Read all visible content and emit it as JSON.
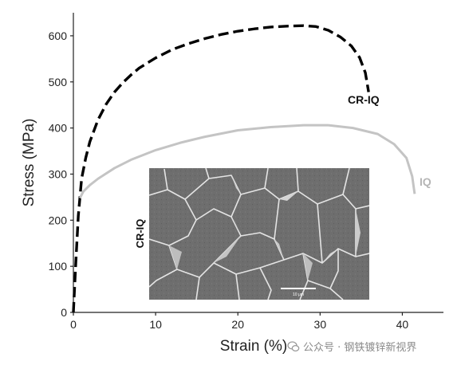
{
  "chart_data": {
    "type": "line",
    "xlabel": "Strain (%)",
    "ylabel": "Stress (MPa)",
    "xlim": [
      0,
      45
    ],
    "ylim": [
      0,
      650
    ],
    "xticks": [
      0,
      10,
      20,
      30,
      40
    ],
    "yticks": [
      0,
      100,
      200,
      300,
      400,
      500,
      600
    ],
    "grid": false,
    "series": [
      {
        "name": "CR-IQ",
        "style": "dashed",
        "color": "#000000",
        "x": [
          0,
          0.3,
          0.6,
          1.0,
          1.5,
          2.0,
          3.0,
          4.0,
          5.0,
          6.0,
          7.0,
          8.0,
          10.0,
          12.0,
          14.0,
          16.0,
          18.0,
          20.0,
          22.0,
          24.0,
          26.0,
          28.0,
          29.5,
          31.0,
          32.5,
          33.8,
          34.8,
          35.5,
          35.9
        ],
        "y": [
          0,
          110,
          210,
          290,
          335,
          370,
          418,
          452,
          478,
          498,
          515,
          530,
          552,
          570,
          583,
          594,
          603,
          610,
          615,
          619,
          621,
          622,
          620,
          612,
          597,
          578,
          553,
          520,
          478
        ]
      },
      {
        "name": "IQ",
        "style": "solid",
        "color": "#c4c4c4",
        "x": [
          0.8,
          1.2,
          2.0,
          3.0,
          5.0,
          7.0,
          10.0,
          13.0,
          16.0,
          20.0,
          24.0,
          28.0,
          31.0,
          34.0,
          37.0,
          39.0,
          40.5,
          41.2,
          41.5
        ],
        "y": [
          248,
          262,
          276,
          290,
          313,
          331,
          352,
          368,
          381,
          395,
          402,
          406,
          406,
          400,
          387,
          365,
          335,
          295,
          257
        ]
      }
    ]
  },
  "series_labels": {
    "cr_iq": "CR-IQ",
    "iq": "IQ"
  },
  "inset": {
    "label": "CR-IQ",
    "scale_bar": "10 μm"
  },
  "watermark": {
    "text": "公众号 · 钢铁镀锌新视界"
  }
}
